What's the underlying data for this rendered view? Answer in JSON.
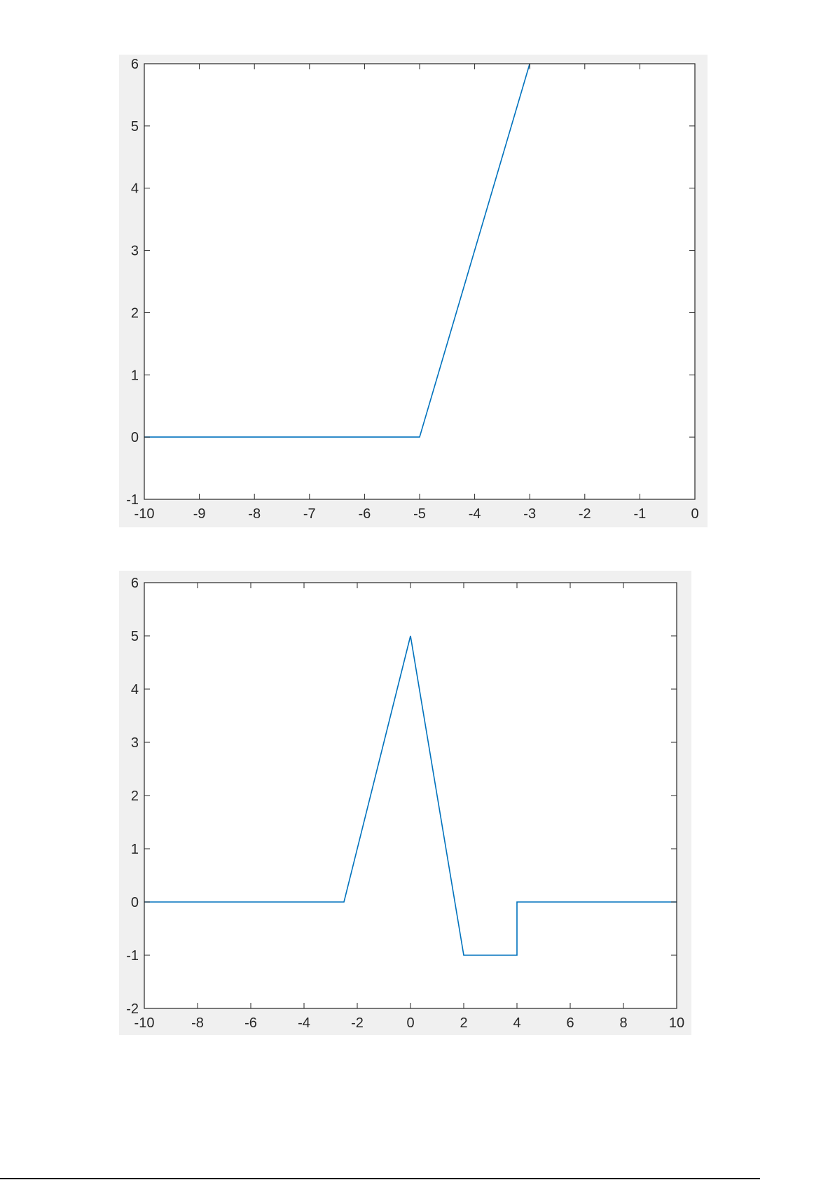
{
  "colors": {
    "line": "#0072BD",
    "figure_background": "#F0F0F0",
    "axes_background": "#FFFFFF",
    "axes": "#262626"
  },
  "chart_data": [
    {
      "type": "line",
      "title": "",
      "xlabel": "",
      "ylabel": "",
      "xlim": [
        -10,
        0
      ],
      "ylim": [
        -1,
        6
      ],
      "xticks": [
        -10,
        -9,
        -8,
        -7,
        -6,
        -5,
        -4,
        -3,
        -2,
        -1,
        0
      ],
      "yticks": [
        -1,
        0,
        1,
        2,
        3,
        4,
        5,
        6
      ],
      "grid": false,
      "series": [
        {
          "x": [
            -10,
            -5,
            -3
          ],
          "y": [
            0,
            0,
            6
          ]
        }
      ]
    },
    {
      "type": "line",
      "title": "",
      "xlabel": "",
      "ylabel": "",
      "xlim": [
        -10,
        10
      ],
      "ylim": [
        -2,
        6
      ],
      "xticks": [
        -10,
        -8,
        -6,
        -4,
        -2,
        0,
        2,
        4,
        6,
        8,
        10
      ],
      "yticks": [
        -2,
        -1,
        0,
        1,
        2,
        3,
        4,
        5,
        6
      ],
      "grid": false,
      "series": [
        {
          "x": [
            -10,
            -2.5,
            0,
            2,
            4,
            4,
            10
          ],
          "y": [
            0,
            0,
            5,
            -1,
            -1,
            0,
            0
          ]
        }
      ]
    }
  ]
}
